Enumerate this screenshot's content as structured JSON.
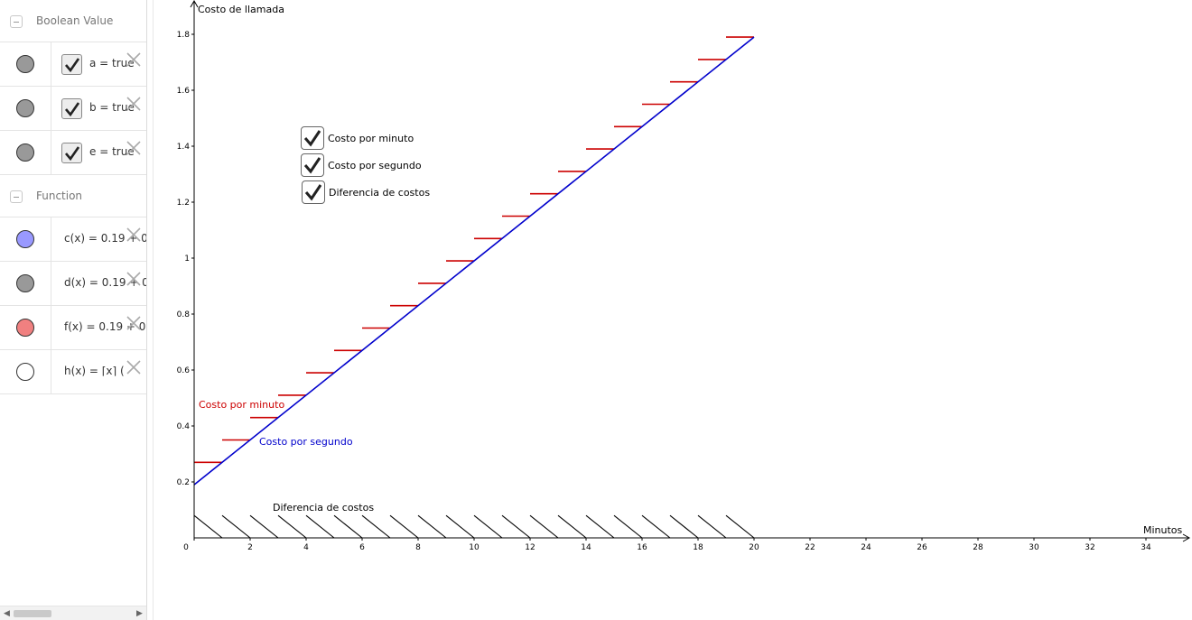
{
  "algebra": {
    "groups": [
      {
        "title": "Boolean Value",
        "rows": [
          {
            "expr": "a = true",
            "checked": true,
            "marble_color": "#999999"
          },
          {
            "expr": "b = true",
            "checked": true,
            "marble_color": "#999999"
          },
          {
            "expr": "e = true",
            "checked": true,
            "marble_color": "#999999"
          }
        ]
      },
      {
        "title": "Function",
        "rows": [
          {
            "expr": "c(x) = 0.19 + 0",
            "marble_color": "#9999ff"
          },
          {
            "expr": "d(x) = 0.19 + 0",
            "marble_color": "#999999"
          },
          {
            "expr": "f(x) = 0.19 + 0",
            "marble_color": "#f08080"
          },
          {
            "expr": "h(x) = ⌈x⌉ (",
            "marble_color": "#ffffff"
          }
        ]
      }
    ],
    "delete_icon": "close-icon"
  },
  "graphics": {
    "checkboxes": [
      {
        "label": "Costo por minuto",
        "checked": true
      },
      {
        "label": "Costo por segundo",
        "checked": true
      },
      {
        "label": "Diferencia de costos",
        "checked": true
      }
    ],
    "labels": {
      "minute": "Costo por minuto",
      "second": "Costo por segundo",
      "difference": "Diferencia de costos"
    },
    "colors": {
      "minute": "#cc0000",
      "second": "#0000cc",
      "difference": "#000000"
    }
  },
  "chart_data": {
    "type": "line",
    "xlabel": "Minutos",
    "ylabel": "Costo de llamada",
    "xlim": [
      0,
      35
    ],
    "ylim": [
      -0.02,
      1.85
    ],
    "x_ticks": [
      0,
      2,
      4,
      6,
      8,
      10,
      12,
      14,
      16,
      18,
      20,
      22,
      24,
      26,
      28,
      30,
      32,
      34
    ],
    "y_ticks": [
      0.2,
      0.4,
      0.6,
      0.8,
      1,
      1.2,
      1.4,
      1.6,
      1.8
    ],
    "series": [
      {
        "name": "Costo por segundo",
        "kind": "line",
        "points": [
          [
            0,
            0.19
          ],
          [
            20,
            1.79
          ]
        ]
      },
      {
        "name": "Costo por minuto",
        "kind": "step",
        "x_start": 0,
        "x_end": 20,
        "base": 0.19,
        "rate_per_minute": 0.08
      }
    ],
    "difference_region": {
      "name": "Diferencia de costos",
      "x_start": 0,
      "x_end": 20,
      "height": 0.08
    }
  }
}
